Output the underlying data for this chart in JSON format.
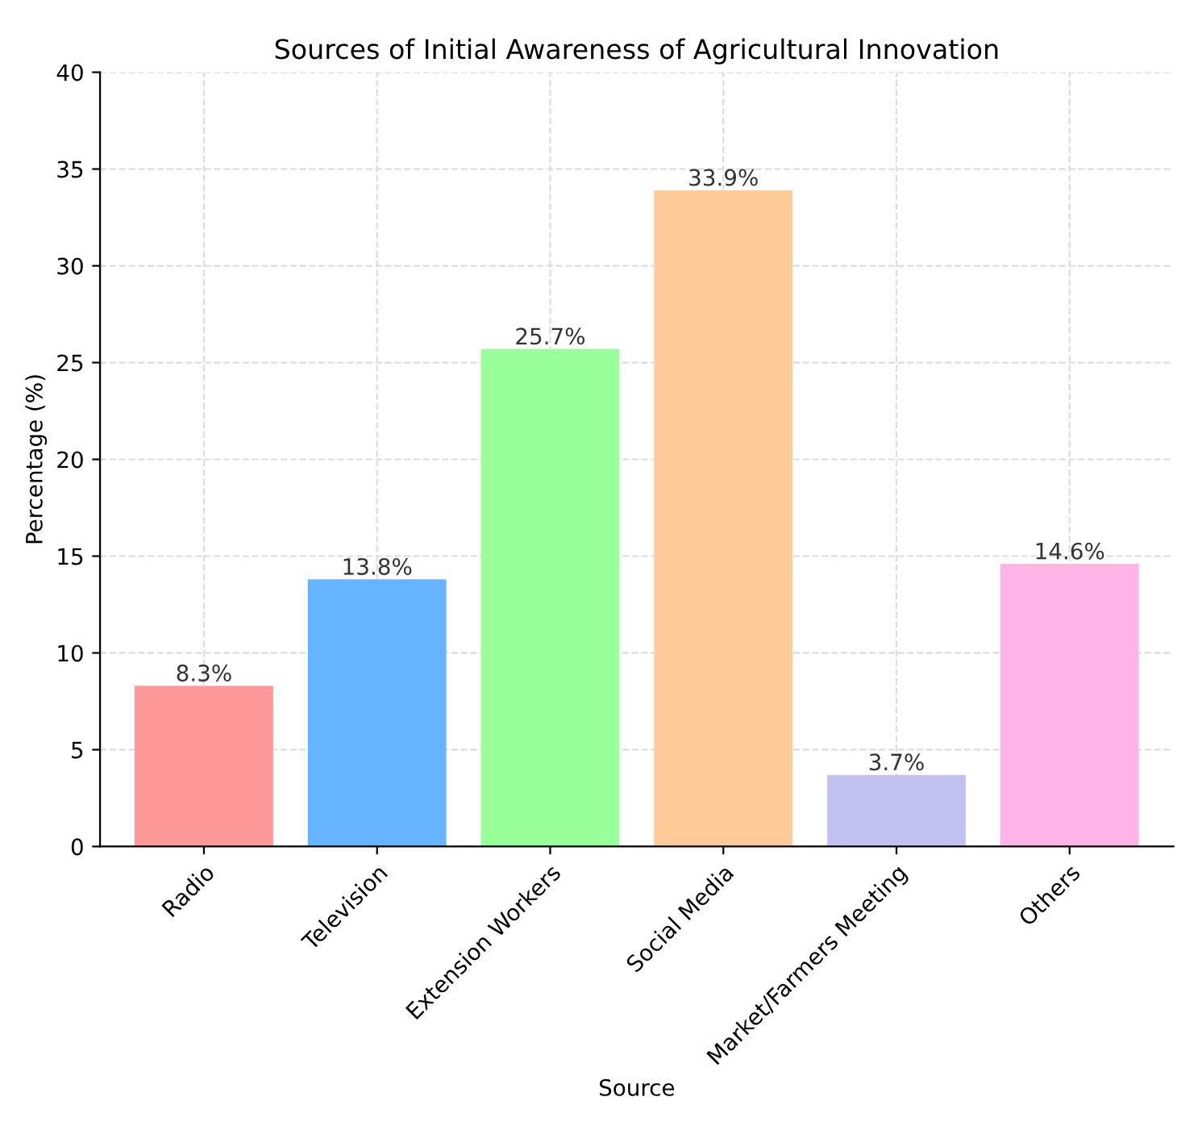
{
  "chart_data": {
    "type": "bar",
    "title": "Sources of Initial Awareness of Agricultural Innovation",
    "xlabel": "Source",
    "ylabel": "Percentage (%)",
    "categories": [
      "Radio",
      "Television",
      "Extension Workers",
      "Social Media",
      "Market/Farmers Meeting",
      "Others"
    ],
    "values": [
      8.3,
      13.8,
      25.7,
      33.9,
      3.7,
      14.6
    ],
    "value_labels": [
      "8.3%",
      "13.8%",
      "25.7%",
      "33.9%",
      "3.7%",
      "14.6%"
    ],
    "colors": [
      "#ff9999",
      "#66b3ff",
      "#99ff99",
      "#ffcc99",
      "#c2c2f0",
      "#ffb3e6"
    ],
    "ylim": [
      0,
      40
    ],
    "yticks": [
      0,
      5,
      10,
      15,
      20,
      25,
      30,
      35,
      40
    ],
    "grid": true
  }
}
